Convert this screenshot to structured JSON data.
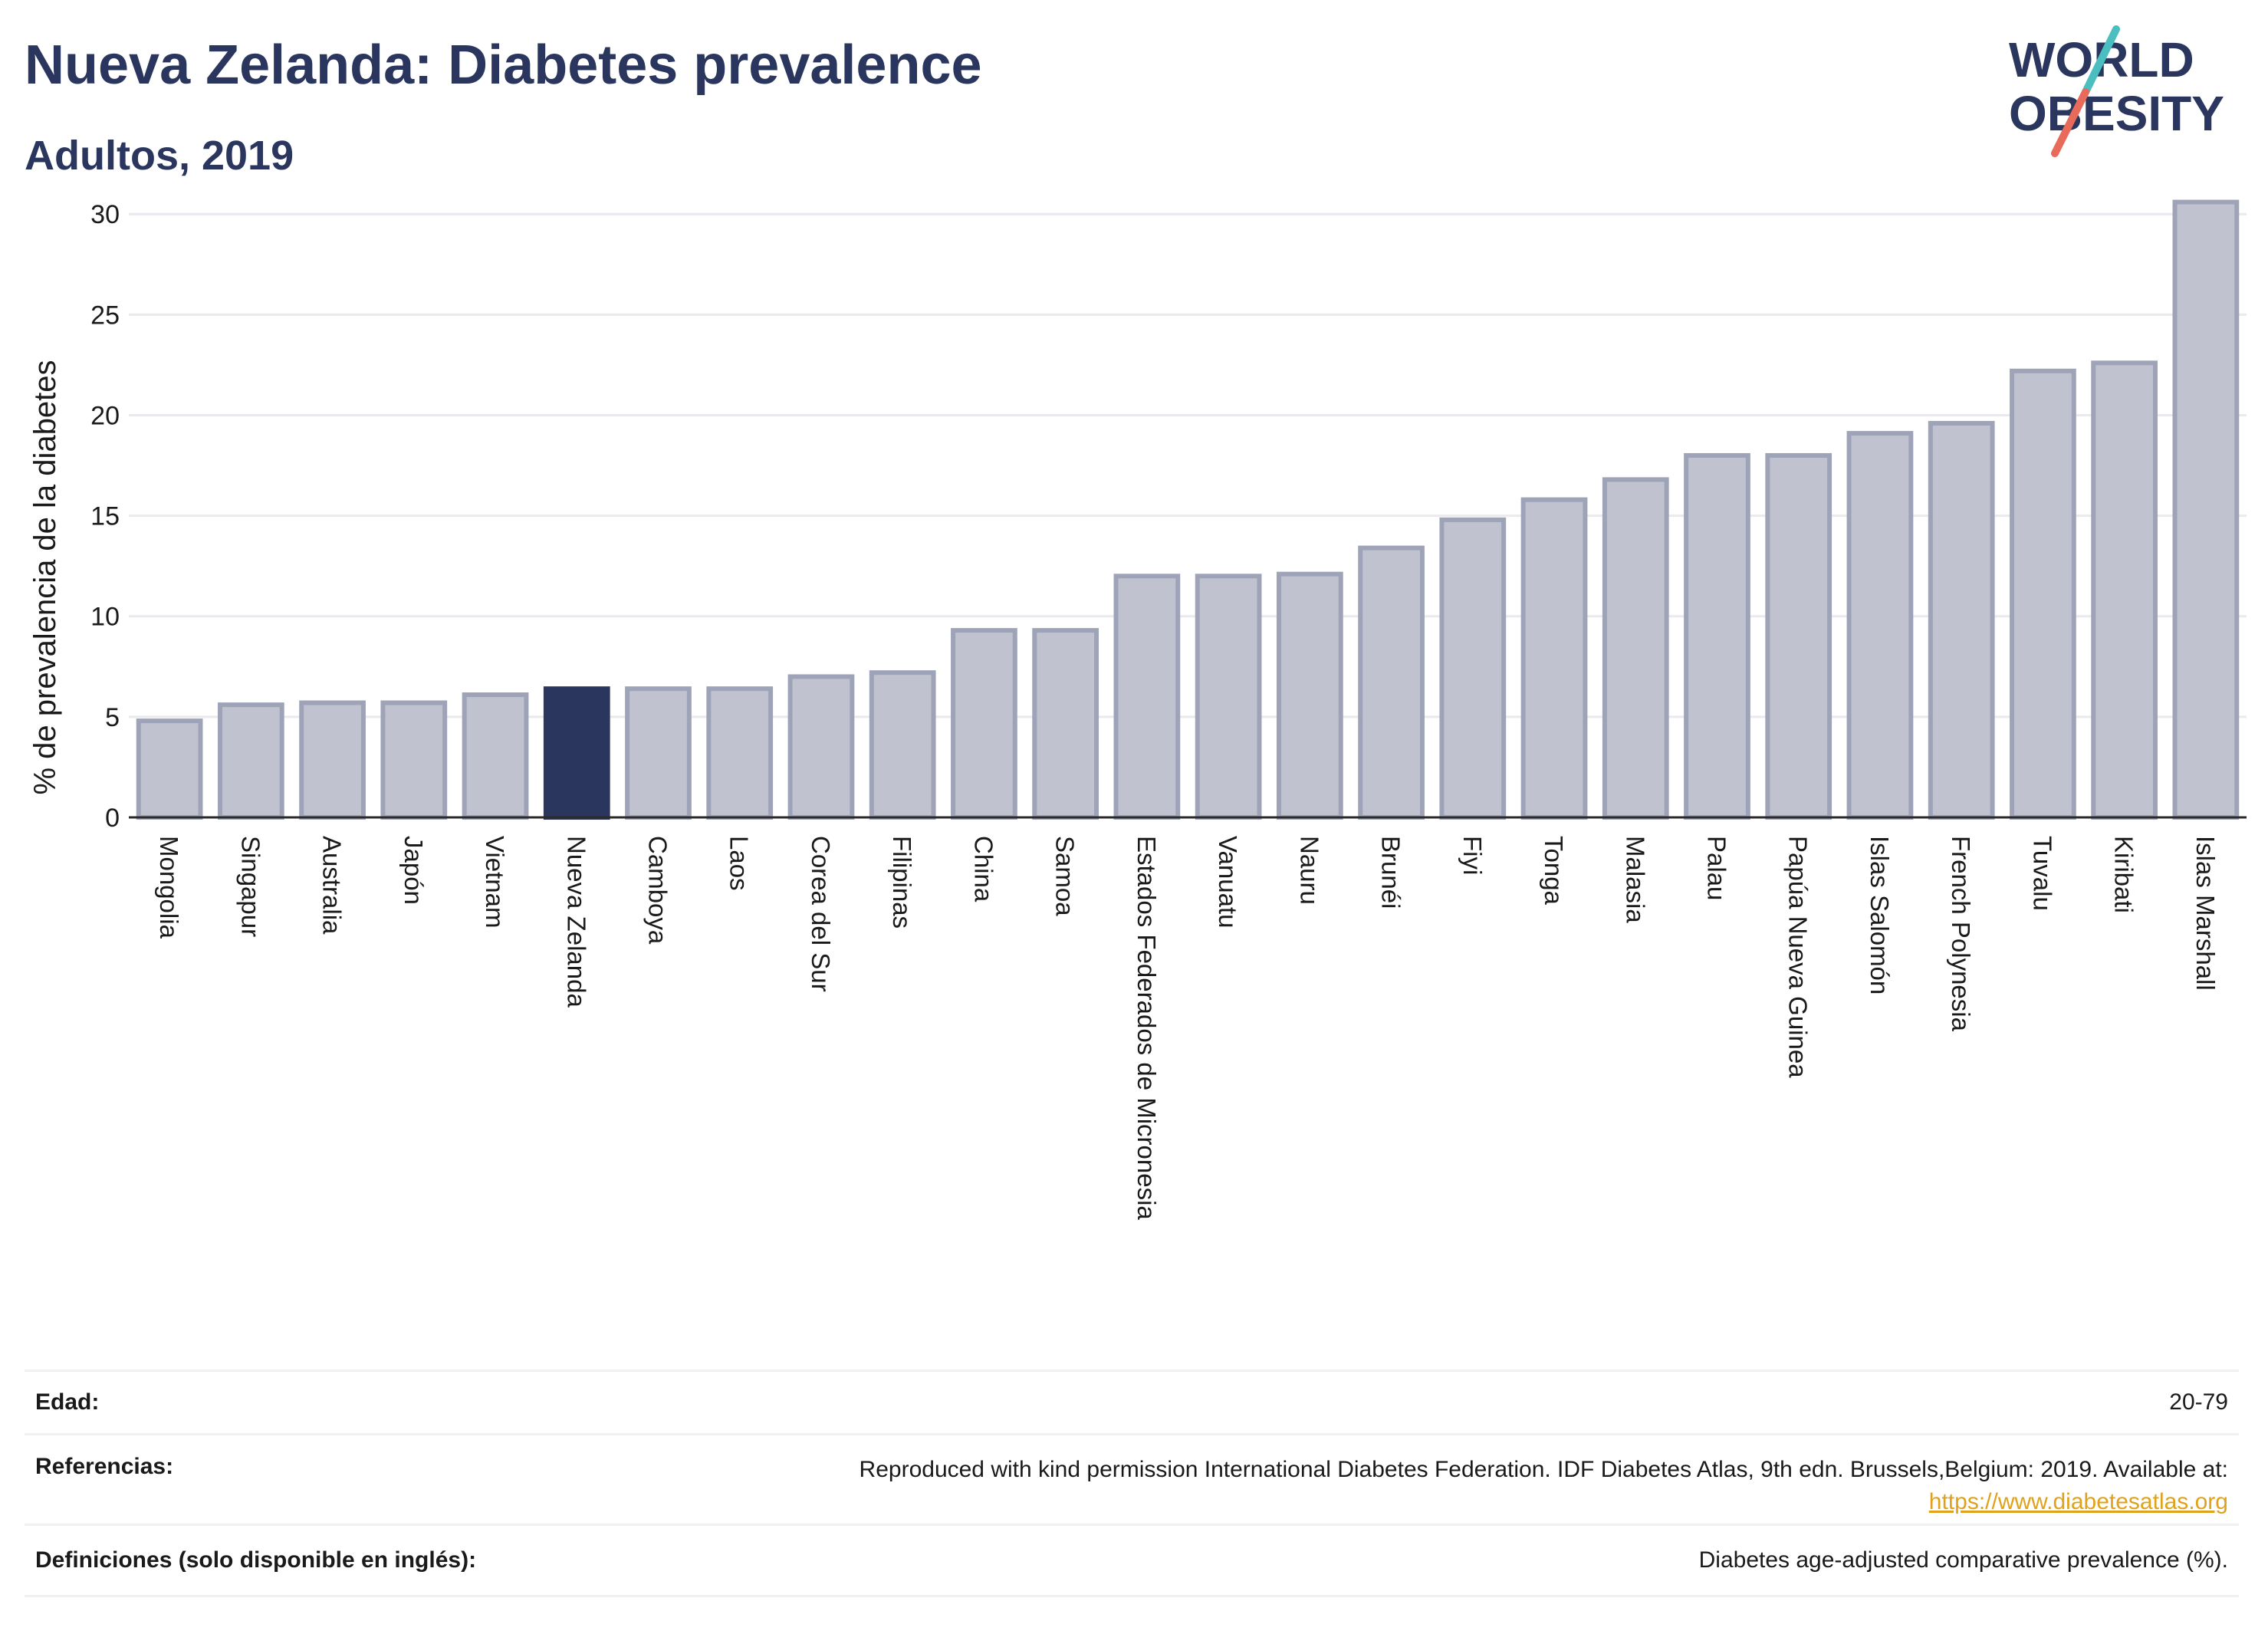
{
  "header": {
    "title": "Nueva Zelanda: Diabetes prevalence",
    "subtitle": "Adultos, 2019"
  },
  "logo": {
    "line1": "WORLD",
    "line2": "OBESITY",
    "slash_colors": [
      "#4bbfbf",
      "#e86a5a"
    ]
  },
  "chart_data": {
    "type": "bar",
    "title": "Nueva Zelanda: Diabetes prevalence",
    "subtitle": "Adultos, 2019",
    "xlabel": "",
    "ylabel": "% de prevalencia de la diabetes",
    "ylim": [
      0,
      31
    ],
    "yticks": [
      0,
      5,
      10,
      15,
      20,
      25,
      30
    ],
    "grid": true,
    "highlight": "Nueva Zelanda",
    "colors": {
      "highlight": "#2a365e",
      "default": "#c0c3cf",
      "outline": "#9ea3b8"
    },
    "categories": [
      "Mongolia",
      "Singapur",
      "Australia",
      "Japón",
      "Vietnam",
      "Nueva Zelanda",
      "Camboya",
      "Laos",
      "Corea del Sur",
      "Filipinas",
      "China",
      "Samoa",
      "Estados Federados de Micronesia",
      "Vanuatu",
      "Nauru",
      "Brunéi",
      "Fiyi",
      "Tonga",
      "Malasia",
      "Palau",
      "Papúa Nueva Guinea",
      "Islas Salomón",
      "French Polynesia",
      "Tuvalu",
      "Kiribati",
      "Islas Marshall"
    ],
    "values": [
      4.8,
      5.6,
      5.7,
      5.7,
      6.1,
      6.4,
      6.4,
      6.4,
      7.0,
      7.2,
      9.3,
      9.3,
      12.0,
      12.0,
      12.1,
      13.4,
      14.8,
      15.8,
      16.8,
      18.0,
      18.0,
      19.1,
      19.6,
      22.2,
      22.6,
      30.6
    ]
  },
  "info": [
    {
      "key": "Edad:",
      "value": "20-79"
    },
    {
      "key": "Referencias:",
      "value": "Reproduced with kind permission International Diabetes Federation. IDF Diabetes Atlas, 9th edn. Brussels,Belgium: 2019. Available at:",
      "link": "https://www.diabetesatlas.org"
    },
    {
      "key": "Definiciones (solo disponible en inglés):",
      "value": "Diabetes age-adjusted comparative prevalence (%)."
    }
  ]
}
